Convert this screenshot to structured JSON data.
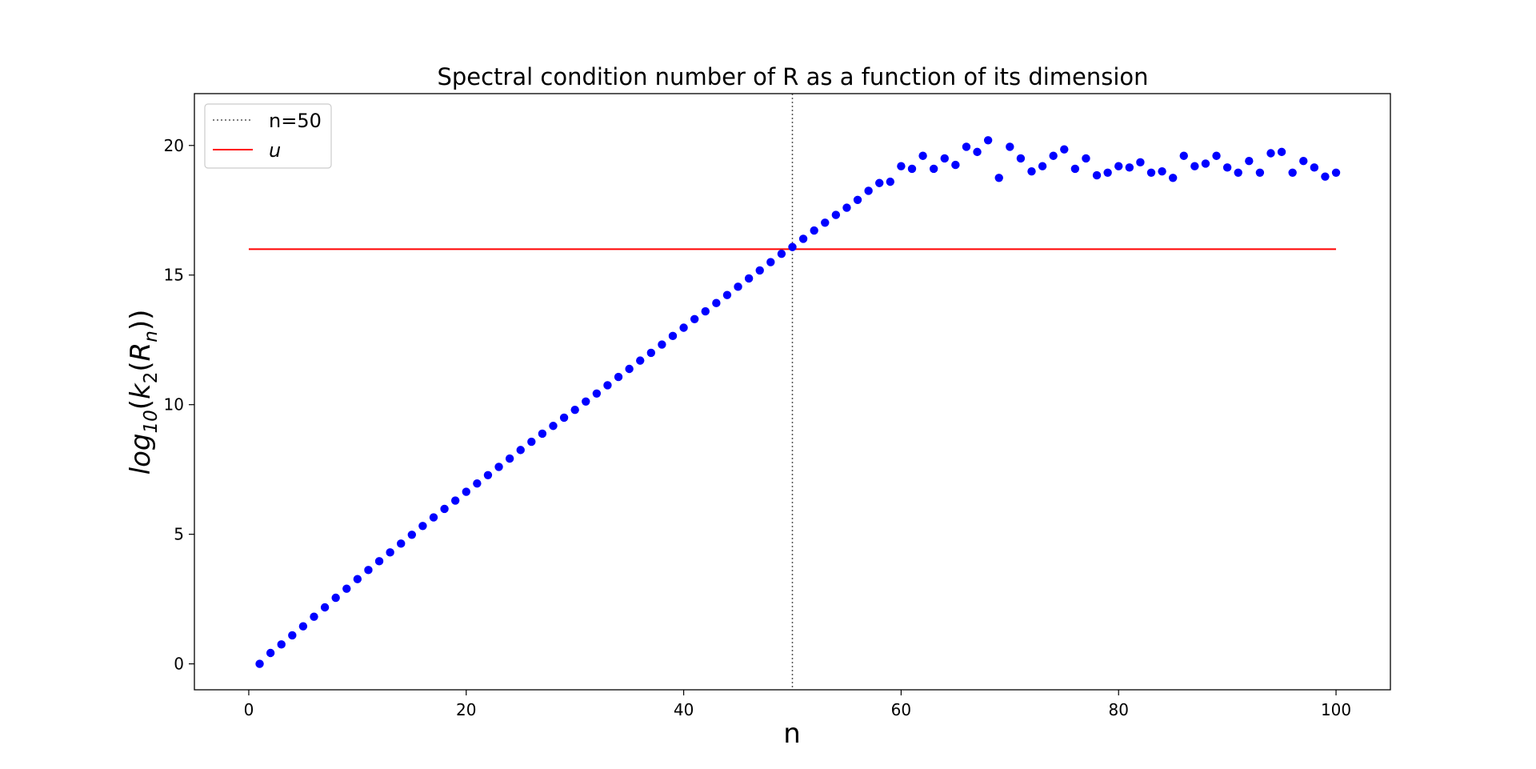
{
  "chart_data": {
    "type": "scatter",
    "title": "Spectral condition number of R as a function of its dimension",
    "xlabel": "n",
    "ylabel": "log10(k2(Rn))",
    "ylabel_parts": {
      "base": "log",
      "base_sub": "10",
      "open": "(",
      "k": "k",
      "k_sub": "2",
      "mid": "(",
      "R": "R",
      "R_sub": "n",
      "close": "))"
    },
    "xlim": [
      -5,
      105
    ],
    "ylim": [
      -1,
      22
    ],
    "xticks": [
      0,
      20,
      40,
      60,
      80,
      100
    ],
    "yticks": [
      0,
      5,
      10,
      15,
      20
    ],
    "grid": false,
    "legend_position": "top-left",
    "colors": {
      "points": "#0000ff",
      "u_line": "#ff0000",
      "vline": "#555555",
      "frame": "#000000"
    },
    "legend": [
      {
        "label": "n=50",
        "style": "dotted",
        "color": "#555555"
      },
      {
        "label": "u",
        "style": "solid",
        "color": "#ff0000",
        "italic": true
      }
    ],
    "vline": {
      "x": 50,
      "label": "n=50"
    },
    "hline": {
      "y": 16,
      "x_start": 0,
      "x_end": 100,
      "label": "u"
    },
    "series": [
      {
        "x": [
          1,
          2,
          3,
          4,
          5,
          6,
          7,
          8,
          9,
          10,
          11,
          12,
          13,
          14,
          15,
          16,
          17,
          18,
          19,
          20,
          21,
          22,
          23,
          24,
          25,
          26,
          27,
          28,
          29,
          30,
          31,
          32,
          33,
          34,
          35,
          36,
          37,
          38,
          39,
          40,
          41,
          42,
          43,
          44,
          45,
          46,
          47,
          48,
          49,
          50,
          51,
          52,
          53,
          54,
          55,
          56,
          57,
          58,
          59,
          60,
          61,
          62,
          63,
          64,
          65,
          66,
          67,
          68,
          69,
          70,
          71,
          72,
          73,
          74,
          75,
          76,
          77,
          78,
          79,
          80,
          81,
          82,
          83,
          84,
          85,
          86,
          87,
          88,
          89,
          90,
          91,
          92,
          93,
          94,
          95,
          96,
          97,
          98,
          99,
          100
        ],
        "y": [
          0.0,
          0.42,
          0.75,
          1.1,
          1.45,
          1.82,
          2.18,
          2.55,
          2.9,
          3.27,
          3.62,
          3.96,
          4.3,
          4.64,
          4.98,
          5.32,
          5.65,
          5.98,
          6.3,
          6.64,
          6.96,
          7.28,
          7.6,
          7.92,
          8.25,
          8.57,
          8.88,
          9.18,
          9.5,
          9.8,
          10.12,
          10.43,
          10.75,
          11.07,
          11.38,
          11.7,
          12.0,
          12.32,
          12.65,
          12.97,
          13.3,
          13.6,
          13.92,
          14.23,
          14.55,
          14.87,
          15.18,
          15.5,
          15.82,
          16.08,
          16.4,
          16.72,
          17.02,
          17.32,
          17.6,
          17.9,
          18.25,
          18.55,
          18.6,
          19.2,
          19.1,
          19.6,
          19.1,
          19.5,
          19.25,
          19.95,
          19.75,
          20.2,
          18.75,
          19.95,
          19.5,
          19.0,
          19.2,
          19.6,
          19.85,
          19.1,
          19.5,
          18.85,
          18.95,
          19.2,
          19.15,
          19.35,
          18.95,
          19.0,
          18.75,
          19.6,
          19.2,
          19.3,
          19.6,
          19.15,
          18.95,
          19.4,
          18.95,
          19.7,
          19.75,
          18.95,
          19.4,
          19.15,
          18.8,
          18.95
        ]
      }
    ]
  }
}
